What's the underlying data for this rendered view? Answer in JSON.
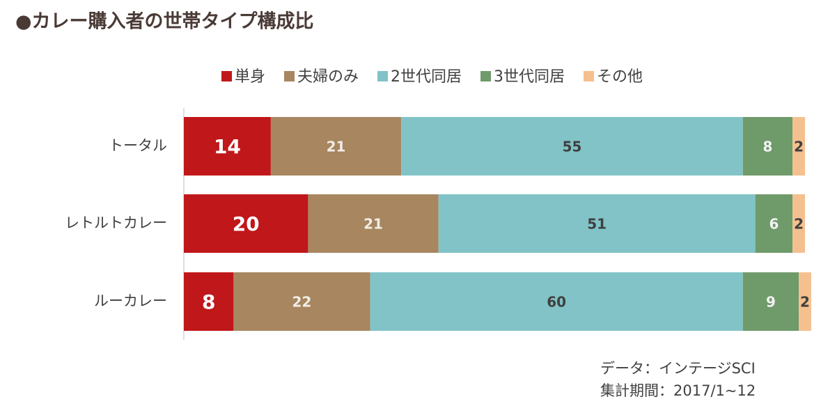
{
  "chart_data": {
    "type": "stacked-bar",
    "orientation": "horizontal",
    "title": "●カレー購入者の世帯タイプ構成比",
    "categories": [
      "トータル",
      "レトルトカレー",
      "ルーカレー"
    ],
    "series": [
      {
        "name": "単身",
        "color": "#c0171a",
        "label_color": "#ffffff",
        "values": [
          14,
          20,
          8
        ]
      },
      {
        "name": "夫婦のみ",
        "color": "#a78660",
        "label_color": "#f2ede6",
        "values": [
          21,
          21,
          22
        ]
      },
      {
        "name": "2世代同居",
        "color": "#81c3c7",
        "label_color": "#404040",
        "values": [
          55,
          51,
          60
        ]
      },
      {
        "name": "3世代同居",
        "color": "#6f9a6a",
        "label_color": "#f2f2f2",
        "values": [
          8,
          6,
          9
        ]
      },
      {
        "name": "その他",
        "color": "#f5c08f",
        "label_color": "#404040",
        "values": [
          2,
          2,
          2
        ]
      }
    ],
    "xlim": [
      0,
      100
    ],
    "legend": "top",
    "notes": [
      "データ：インテージSCI",
      "集計期間：2017/1~12"
    ]
  }
}
